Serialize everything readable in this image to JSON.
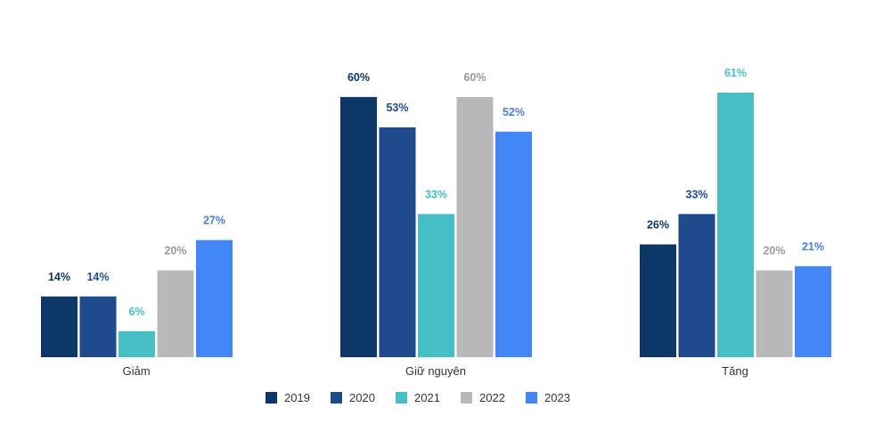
{
  "chart_data": {
    "type": "bar",
    "title": "",
    "xlabel": "",
    "ylabel": "",
    "ylim": [
      0,
      61
    ],
    "grid": false,
    "legend_position": "bottom",
    "categories": [
      "Giảm",
      "Giữ nguyên",
      "Tăng"
    ],
    "series": [
      {
        "name": "2019",
        "color": "#0b3866",
        "label_color": "#0b3866",
        "values": [
          14,
          60,
          26
        ]
      },
      {
        "name": "2020",
        "color": "#1f4a8e",
        "label_color": "#1f4a8e",
        "values": [
          14,
          53,
          33
        ]
      },
      {
        "name": "2021",
        "color": "#46bec6",
        "label_color": "#46bec6",
        "values": [
          6,
          33,
          61
        ]
      },
      {
        "name": "2022",
        "color": "#b9b9b9",
        "label_color": "#9b9b9b",
        "values": [
          20,
          60,
          20
        ]
      },
      {
        "name": "2023",
        "color": "#4287f5",
        "label_color": "#4a7fd6",
        "values": [
          27,
          52,
          21
        ]
      }
    ],
    "value_suffix": "%"
  }
}
